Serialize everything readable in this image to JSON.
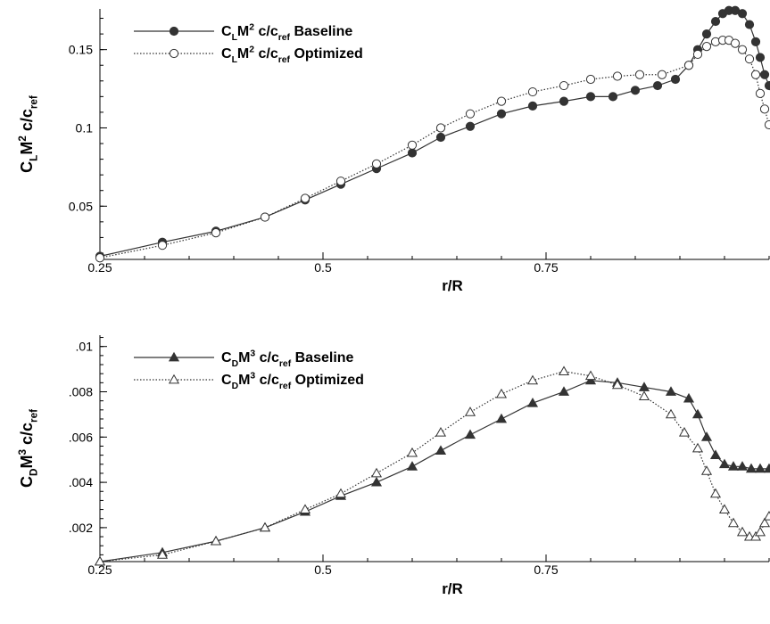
{
  "chart_data": [
    {
      "type": "line",
      "xlabel": "r/R",
      "ylabel": {
        "base": "C",
        "sub1": "L",
        "mid": "M",
        "sup": "2",
        "tail": " c/c",
        "sub2": "ref"
      },
      "xlim": [
        0.25,
        1.0
      ],
      "ylim": [
        0.016,
        0.176
      ],
      "xticks": [
        0.25,
        0.5,
        0.75
      ],
      "xtick_labels": [
        "0.25",
        "0.5",
        "0.75"
      ],
      "yticks": [
        0.05,
        0.1,
        0.15
      ],
      "ytick_labels": [
        "0.05",
        "0.1",
        "0.15"
      ],
      "grid": false,
      "legend_position": "top-left",
      "series": [
        {
          "name": {
            "base": "C",
            "sub1": "L",
            "mid": "M",
            "sup": "2",
            "tail": " c/c",
            "sub2": "ref",
            "end": " Baseline"
          },
          "marker": "circle-filled",
          "line_style": "solid",
          "color": "#333333",
          "x": [
            0.25,
            0.32,
            0.38,
            0.435,
            0.48,
            0.52,
            0.56,
            0.6,
            0.632,
            0.665,
            0.7,
            0.735,
            0.77,
            0.8,
            0.825,
            0.85,
            0.875,
            0.895,
            0.91,
            0.92,
            0.93,
            0.94,
            0.948,
            0.955,
            0.962,
            0.97,
            0.978,
            0.985,
            0.99,
            0.995,
            1.0
          ],
          "y": [
            0.018,
            0.027,
            0.034,
            0.043,
            0.054,
            0.064,
            0.074,
            0.084,
            0.094,
            0.101,
            0.109,
            0.114,
            0.117,
            0.12,
            0.12,
            0.124,
            0.127,
            0.131,
            0.14,
            0.15,
            0.16,
            0.168,
            0.173,
            0.175,
            0.175,
            0.173,
            0.166,
            0.155,
            0.145,
            0.134,
            0.127
          ]
        },
        {
          "name": {
            "base": "C",
            "sub1": "L",
            "mid": "M",
            "sup": "2",
            "tail": " c/c",
            "sub2": "ref",
            "end": " Optimized"
          },
          "marker": "circle-open",
          "line_style": "dotted",
          "color": "#333333",
          "x": [
            0.25,
            0.32,
            0.38,
            0.435,
            0.48,
            0.52,
            0.56,
            0.6,
            0.632,
            0.665,
            0.7,
            0.735,
            0.77,
            0.8,
            0.83,
            0.855,
            0.88,
            0.91,
            0.92,
            0.93,
            0.94,
            0.948,
            0.955,
            0.962,
            0.97,
            0.978,
            0.985,
            0.99,
            0.995,
            1.0
          ],
          "y": [
            0.017,
            0.025,
            0.033,
            0.043,
            0.055,
            0.066,
            0.077,
            0.089,
            0.1,
            0.109,
            0.117,
            0.123,
            0.127,
            0.131,
            0.133,
            0.134,
            0.134,
            0.14,
            0.147,
            0.152,
            0.155,
            0.156,
            0.156,
            0.154,
            0.15,
            0.144,
            0.134,
            0.122,
            0.112,
            0.102
          ]
        }
      ]
    },
    {
      "type": "line",
      "xlabel": "r/R",
      "ylabel": {
        "base": "C",
        "sub1": "D",
        "mid": "M",
        "sup": "3",
        "tail": " c/c",
        "sub2": "ref"
      },
      "xlim": [
        0.25,
        1.0
      ],
      "ylim": [
        0.0005,
        0.0105
      ],
      "xticks": [
        0.25,
        0.5,
        0.75
      ],
      "xtick_labels": [
        "0.25",
        "0.5",
        "0.75"
      ],
      "yticks": [
        0.002,
        0.004,
        0.006,
        0.008,
        0.01
      ],
      "ytick_labels": [
        ".002",
        ".004",
        ".006",
        ".008",
        ".01"
      ],
      "grid": false,
      "legend_position": "top-left",
      "series": [
        {
          "name": {
            "base": "C",
            "sub1": "D",
            "mid": "M",
            "sup": "3",
            "tail": " c/c",
            "sub2": "ref",
            "end": " Baseline"
          },
          "marker": "triangle-filled",
          "line_style": "solid",
          "color": "#333333",
          "x": [
            0.25,
            0.32,
            0.38,
            0.435,
            0.48,
            0.52,
            0.56,
            0.6,
            0.632,
            0.665,
            0.7,
            0.735,
            0.77,
            0.8,
            0.83,
            0.86,
            0.89,
            0.91,
            0.92,
            0.93,
            0.94,
            0.95,
            0.96,
            0.97,
            0.98,
            0.99,
            1.0
          ],
          "y": [
            0.0005,
            0.0009,
            0.0014,
            0.002,
            0.0027,
            0.0034,
            0.004,
            0.0047,
            0.0054,
            0.0061,
            0.0068,
            0.0075,
            0.008,
            0.0085,
            0.0084,
            0.0082,
            0.008,
            0.0077,
            0.007,
            0.006,
            0.0052,
            0.0048,
            0.0047,
            0.0047,
            0.0046,
            0.0046,
            0.0046
          ]
        },
        {
          "name": {
            "base": "C",
            "sub1": "D",
            "mid": "M",
            "sup": "3",
            "tail": " c/c",
            "sub2": "ref",
            "end": " Optimized"
          },
          "marker": "triangle-open",
          "line_style": "dotted",
          "color": "#333333",
          "x": [
            0.25,
            0.32,
            0.38,
            0.435,
            0.48,
            0.52,
            0.56,
            0.6,
            0.632,
            0.665,
            0.7,
            0.735,
            0.77,
            0.8,
            0.83,
            0.86,
            0.89,
            0.905,
            0.92,
            0.93,
            0.94,
            0.95,
            0.96,
            0.97,
            0.978,
            0.985,
            0.99,
            0.995,
            1.0
          ],
          "y": [
            0.0005,
            0.0008,
            0.0014,
            0.002,
            0.0028,
            0.0035,
            0.0044,
            0.0053,
            0.0062,
            0.0071,
            0.0079,
            0.0085,
            0.0089,
            0.0087,
            0.0083,
            0.0078,
            0.007,
            0.0062,
            0.0055,
            0.0045,
            0.0035,
            0.0028,
            0.0022,
            0.0018,
            0.0016,
            0.0016,
            0.0018,
            0.0022,
            0.0025
          ]
        }
      ]
    }
  ]
}
